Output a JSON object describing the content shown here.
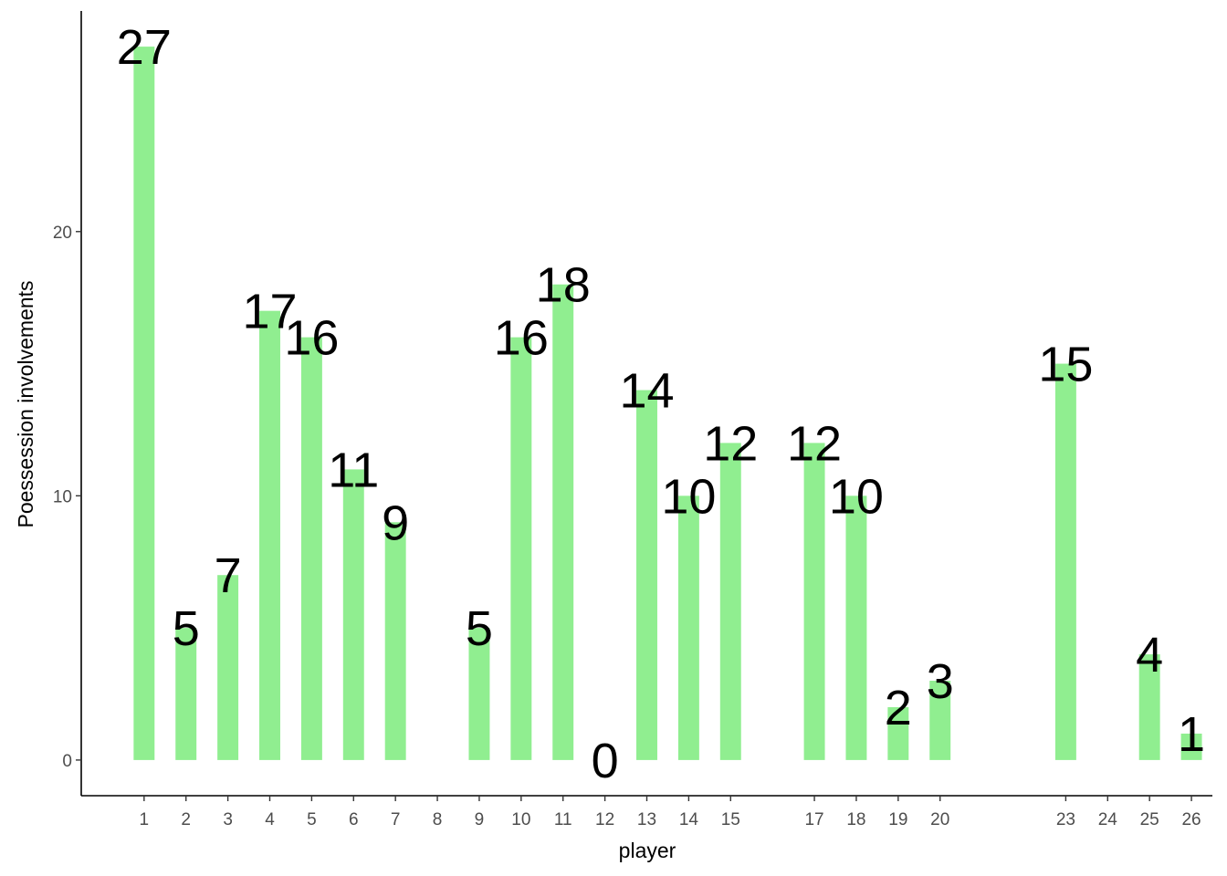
{
  "chart_data": {
    "type": "bar",
    "title": "",
    "xlabel": "player",
    "ylabel": "Poessession involvements",
    "x_ticks": [
      "1",
      "2",
      "3",
      "4",
      "5",
      "6",
      "7",
      "8",
      "9",
      "10",
      "11",
      "12",
      "13",
      "14",
      "15",
      "17",
      "18",
      "19",
      "20",
      "23",
      "24",
      "25",
      "26"
    ],
    "x_range": [
      -0.5,
      26.5
    ],
    "y_ticks": [
      "0",
      "10",
      "20"
    ],
    "ylim": [
      -1.35,
      28.35
    ],
    "bar_color": "#90EE90",
    "grid": false,
    "legend": "none",
    "bars": [
      {
        "player": 1,
        "value": 27
      },
      {
        "player": 2,
        "value": 5
      },
      {
        "player": 3,
        "value": 7
      },
      {
        "player": 4,
        "value": 17
      },
      {
        "player": 5,
        "value": 16
      },
      {
        "player": 6,
        "value": 11
      },
      {
        "player": 7,
        "value": 9
      },
      {
        "player": 9,
        "value": 5
      },
      {
        "player": 10,
        "value": 16
      },
      {
        "player": 11,
        "value": 18
      },
      {
        "player": 12,
        "value": 0
      },
      {
        "player": 13,
        "value": 14
      },
      {
        "player": 14,
        "value": 10
      },
      {
        "player": 15,
        "value": 12
      },
      {
        "player": 17,
        "value": 12
      },
      {
        "player": 18,
        "value": 10
      },
      {
        "player": 19,
        "value": 2
      },
      {
        "player": 20,
        "value": 3
      },
      {
        "player": 23,
        "value": 15
      },
      {
        "player": 25,
        "value": 4
      },
      {
        "player": 26,
        "value": 1
      }
    ]
  }
}
